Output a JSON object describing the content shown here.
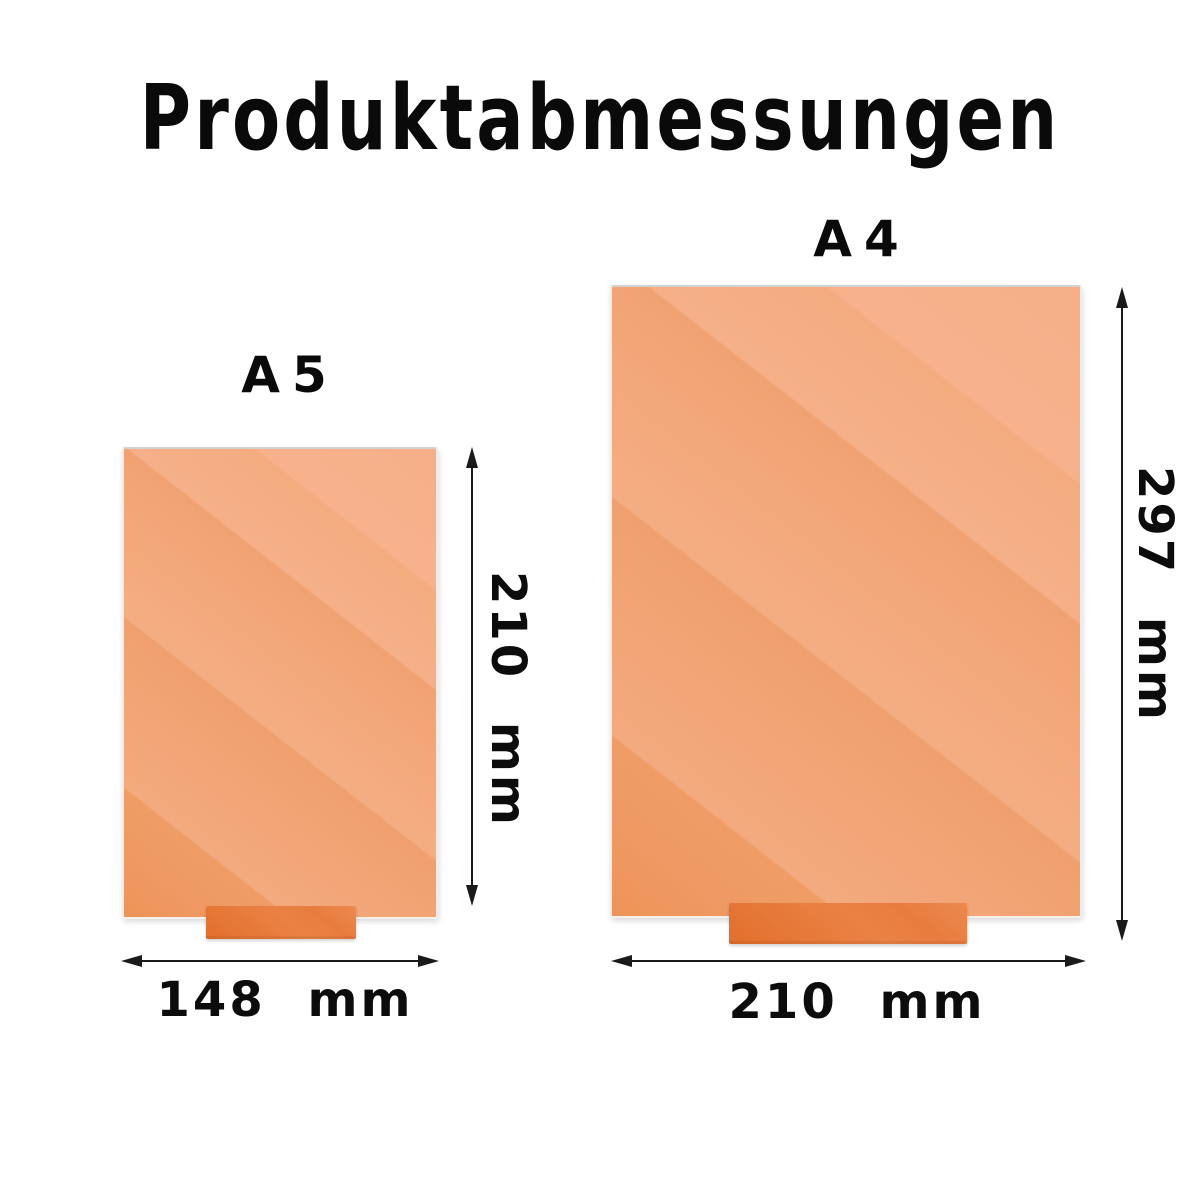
{
  "title": "Produktabmessungen",
  "colors": {
    "background": "#ffffff",
    "panel_orange_base": "#f2a478",
    "panel_orange_dark": "#ed9357",
    "panel_orange_light": "#f6b28c",
    "stand_orange": "#e87c3e",
    "arrow_black": "#1a1a1a",
    "text_black": "#0a0a0a"
  },
  "products": [
    {
      "label": "A5",
      "height_label": "210 mm",
      "width_label": "148 mm"
    },
    {
      "label": "A4",
      "height_label": "297 mm",
      "width_label": "210 mm"
    }
  ]
}
